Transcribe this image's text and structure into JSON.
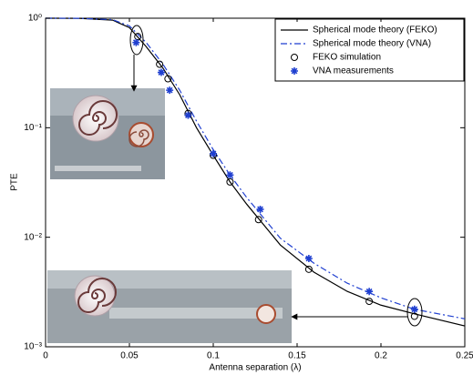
{
  "chart_data": {
    "type": "line",
    "x_label": "Antenna separation (λ)",
    "y_label": "PTE",
    "log_y": true,
    "xlim": [
      0,
      0.25
    ],
    "ylim": [
      0.001,
      1
    ],
    "xticks": [
      0,
      0.05,
      0.1,
      0.15,
      0.2,
      0.25
    ],
    "yticks": [
      {
        "value": 0.001,
        "label": "10⁻³"
      },
      {
        "value": 0.01,
        "label": "10⁻²"
      },
      {
        "value": 0.1,
        "label": "10⁻¹"
      },
      {
        "value": 1,
        "label": "10⁰"
      }
    ],
    "legend": "upper right",
    "series": [
      {
        "name": "Spherical mode theory (FEKO)",
        "color": "#000000",
        "style": "solid",
        "x": [
          0,
          0.02,
          0.04,
          0.05,
          0.06,
          0.07,
          0.08,
          0.09,
          0.1,
          0.11,
          0.12,
          0.14,
          0.16,
          0.18,
          0.2,
          0.22,
          0.25
        ],
        "values": [
          1,
          0.998,
          0.96,
          0.82,
          0.55,
          0.35,
          0.2,
          0.1,
          0.056,
          0.032,
          0.02,
          0.0085,
          0.0048,
          0.0032,
          0.0024,
          0.002,
          0.00155
        ]
      },
      {
        "name": "Spherical mode theory (VNA)",
        "color": "#1f3fd0",
        "style": "dashdot",
        "x": [
          0,
          0.02,
          0.04,
          0.05,
          0.06,
          0.07,
          0.08,
          0.09,
          0.1,
          0.11,
          0.12,
          0.14,
          0.16,
          0.18,
          0.2,
          0.22,
          0.25
        ],
        "values": [
          1,
          0.998,
          0.97,
          0.85,
          0.6,
          0.38,
          0.22,
          0.115,
          0.063,
          0.037,
          0.023,
          0.0098,
          0.0058,
          0.0038,
          0.0028,
          0.0022,
          0.0018
        ]
      },
      {
        "name": "FEKO simulation",
        "color": "#000000",
        "style": "circle",
        "x": [
          0.055,
          0.068,
          0.073,
          0.085,
          0.1,
          0.11,
          0.127,
          0.157,
          0.193,
          0.22
        ],
        "values": [
          0.68,
          0.38,
          0.28,
          0.135,
          0.056,
          0.032,
          0.0145,
          0.0051,
          0.0026,
          0.0019
        ]
      },
      {
        "name": "VNA measurements",
        "color": "#1f3fd0",
        "style": "star",
        "x": [
          0.054,
          0.069,
          0.074,
          0.085,
          0.1,
          0.11,
          0.128,
          0.157,
          0.193,
          0.22
        ],
        "values": [
          0.6,
          0.32,
          0.22,
          0.13,
          0.058,
          0.037,
          0.018,
          0.0064,
          0.0032,
          0.0022
        ]
      }
    ]
  }
}
